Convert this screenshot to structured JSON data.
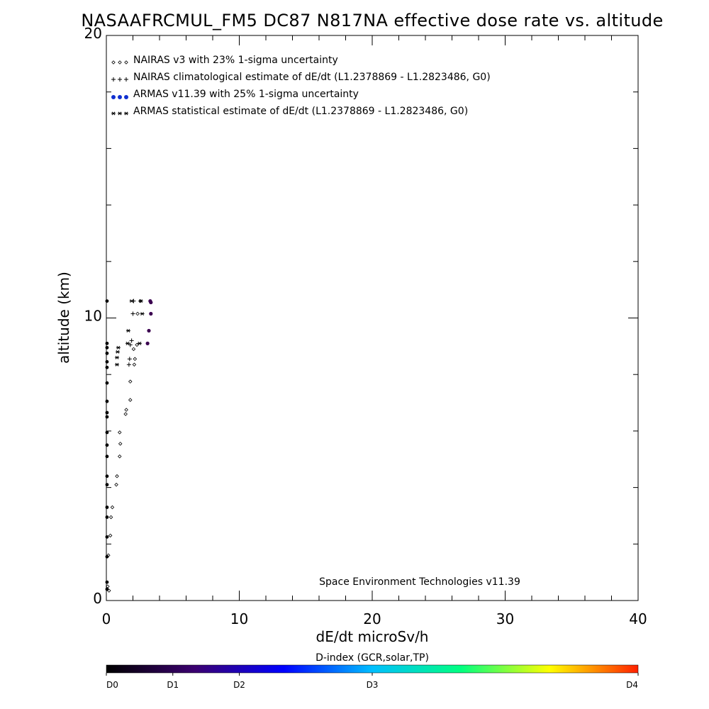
{
  "chart_data": {
    "type": "scatter",
    "title": "NASAAFRCMUL_FM5 DC87 N817NA effective dose rate vs. altitude",
    "xlabel": "dE/dt microSv/h",
    "ylabel": "altitude (km)",
    "xlim": [
      0,
      40
    ],
    "ylim": [
      0,
      20
    ],
    "x_ticks": [
      0,
      10,
      20,
      30,
      40
    ],
    "y_ticks": [
      0,
      10,
      20
    ],
    "legend_position": "top-left",
    "grid": false,
    "legend": [
      {
        "marker": "diamond",
        "text": "NAIRAS v3 with 23% 1-sigma uncertainty"
      },
      {
        "marker": "plus",
        "text": "NAIRAS climatological estimate of dE/dt (L1.2378869 - L1.2823486, G0)"
      },
      {
        "marker": "dot",
        "text": "ARMAS v11.39 with 25% 1-sigma uncertainty"
      },
      {
        "marker": "asterisk",
        "text": "ARMAS statistical estimate of dE/dt (L1.2378869 - L1.2823486, G0)"
      }
    ],
    "series": [
      {
        "name": "NAIRAS v3 with 23% 1-sigma uncertainty",
        "marker": "diamond",
        "points": [
          [
            0.2,
            0.35
          ],
          [
            0.1,
            0.5
          ],
          [
            0.15,
            1.6
          ],
          [
            0.3,
            2.3
          ],
          [
            0.35,
            2.95
          ],
          [
            0.45,
            3.3
          ],
          [
            0.75,
            4.1
          ],
          [
            0.8,
            4.4
          ],
          [
            1.0,
            5.1
          ],
          [
            1.05,
            5.55
          ],
          [
            1.0,
            5.95
          ],
          [
            1.45,
            6.6
          ],
          [
            1.5,
            6.75
          ],
          [
            1.8,
            7.1
          ],
          [
            1.8,
            7.75
          ],
          [
            2.1,
            8.35
          ],
          [
            2.15,
            8.55
          ],
          [
            2.05,
            8.9
          ],
          [
            2.3,
            9.05
          ],
          [
            2.35,
            10.15
          ],
          [
            2.55,
            10.6
          ]
        ]
      },
      {
        "name": "NAIRAS climatological estimate of dE/dt (L1.2378869 - L1.2823486, G0)",
        "marker": "plus",
        "points": [
          [
            1.7,
            8.35
          ],
          [
            1.75,
            8.55
          ],
          [
            1.8,
            9.05
          ],
          [
            1.9,
            9.2
          ],
          [
            2.0,
            10.15
          ],
          [
            2.05,
            10.6
          ]
        ]
      },
      {
        "name": "ARMAS v11.39 with 25% 1-sigma uncertainty",
        "marker": "dot",
        "points": [
          [
            0.05,
            0.4
          ],
          [
            0.05,
            0.65
          ],
          [
            0.05,
            1.55
          ],
          [
            0.05,
            2.25
          ],
          [
            0.05,
            2.95
          ],
          [
            0.05,
            3.3
          ],
          [
            0.05,
            4.1
          ],
          [
            0.05,
            4.4
          ],
          [
            0.05,
            5.1
          ],
          [
            0.05,
            5.5
          ],
          [
            0.05,
            5.95
          ],
          [
            0.05,
            6.5
          ],
          [
            0.05,
            6.65
          ],
          [
            0.05,
            7.05
          ],
          [
            0.05,
            7.7
          ],
          [
            0.05,
            8.25
          ],
          [
            0.05,
            8.45
          ],
          [
            0.05,
            8.75
          ],
          [
            0.05,
            8.95
          ],
          [
            0.05,
            9.1
          ],
          [
            0.05,
            10.6
          ],
          [
            3.1,
            9.1
          ],
          [
            3.2,
            9.55
          ],
          [
            3.35,
            10.15
          ],
          [
            3.35,
            10.55
          ],
          [
            3.3,
            10.6
          ]
        ]
      },
      {
        "name": "ARMAS statistical estimate of dE/dt (L1.2378869 - L1.2823486, G0)",
        "marker": "asterisk",
        "points": [
          [
            0.8,
            8.35
          ],
          [
            0.8,
            8.6
          ],
          [
            0.85,
            8.8
          ],
          [
            0.9,
            8.95
          ],
          [
            1.6,
            9.1
          ],
          [
            1.65,
            9.55
          ],
          [
            2.5,
            9.1
          ],
          [
            2.7,
            10.15
          ],
          [
            2.6,
            10.6
          ],
          [
            1.9,
            10.6
          ]
        ]
      }
    ]
  },
  "credit": "Space Environment Technologies v11.39",
  "colorbar": {
    "title": "D-index (GCR,solar,TP)",
    "colors": [
      "#000000",
      "#3b0070",
      "#0000ff",
      "#00bfff",
      "#00ff80",
      "#ffff00",
      "#ff2000"
    ],
    "ticks": [
      {
        "label": "D0",
        "pos": 0
      },
      {
        "label": "D1",
        "pos": 0.125
      },
      {
        "label": "D2",
        "pos": 0.25
      },
      {
        "label": "D3",
        "pos": 0.5
      },
      {
        "label": "D4",
        "pos": 1
      }
    ]
  }
}
